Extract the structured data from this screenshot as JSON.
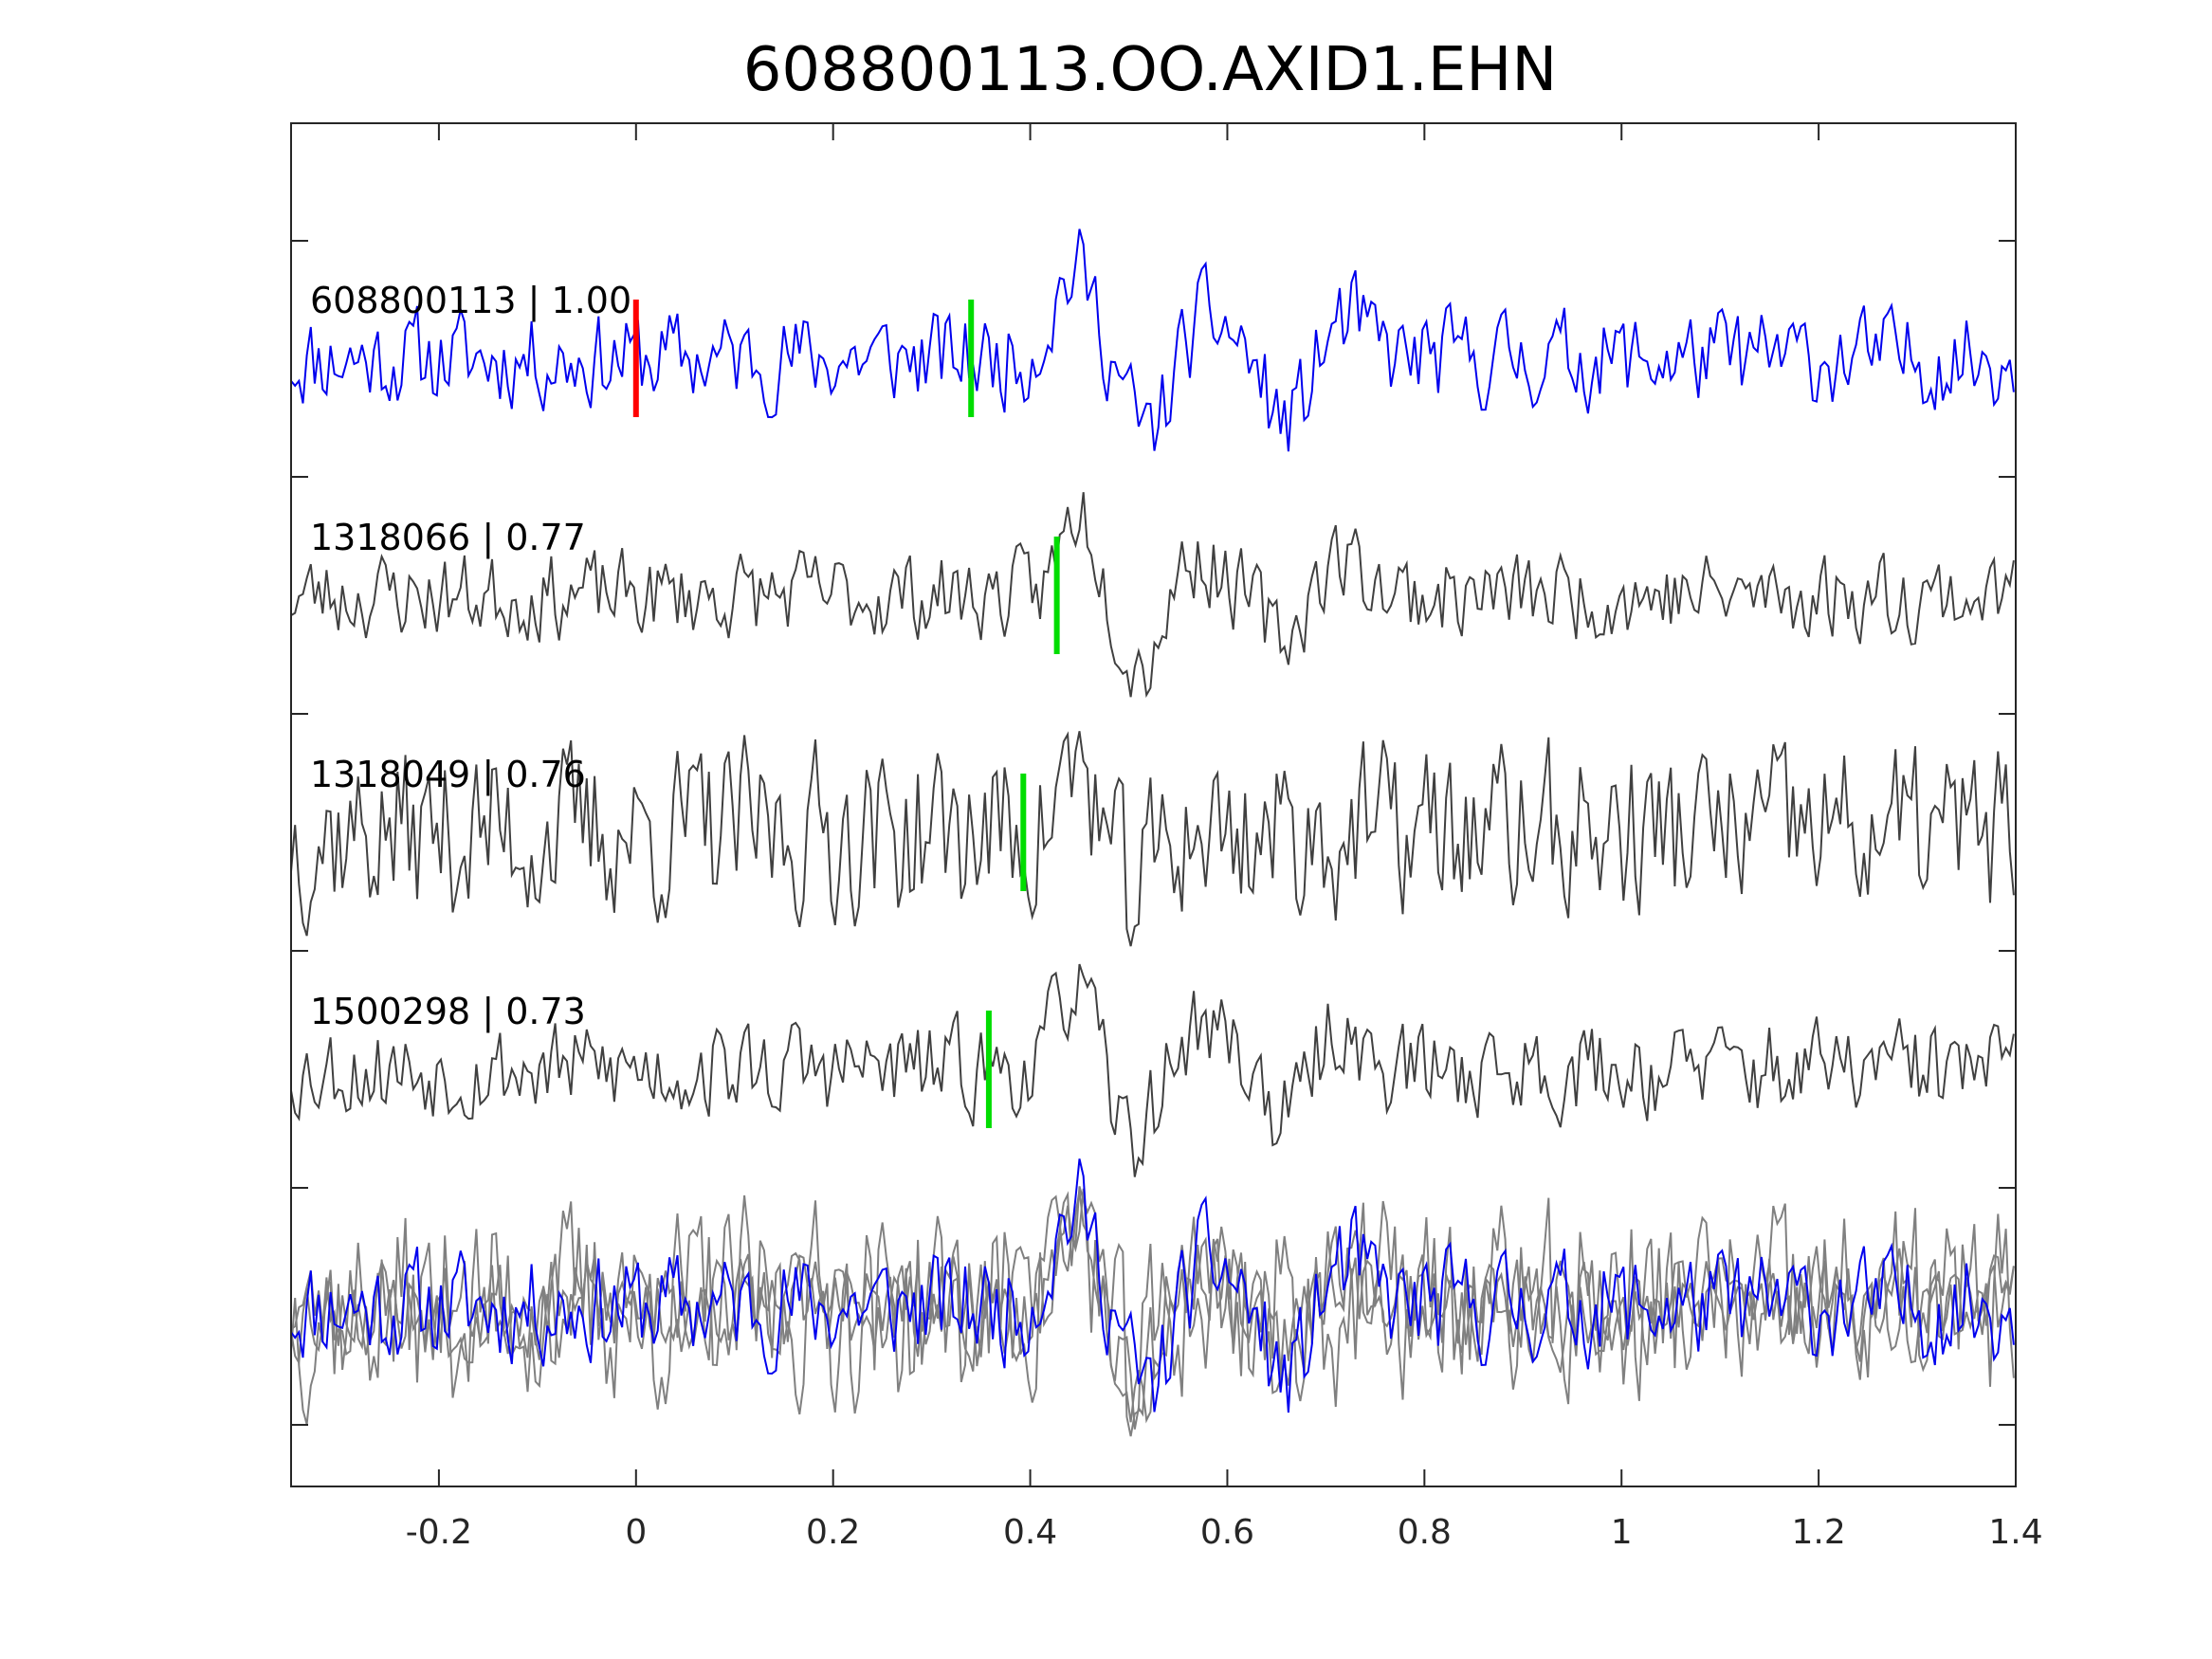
{
  "chart_data": {
    "type": "line",
    "title": "608800113.OO.AXID1.EHN",
    "xlabel": "",
    "ylabel": "",
    "xlim": [
      -0.35,
      1.4
    ],
    "xticks": [
      -0.2,
      0,
      0.2,
      0.4,
      0.6,
      0.8,
      1,
      1.2,
      1.4
    ],
    "xtick_labels": [
      "-0.2",
      "0",
      "0.2",
      "0.4",
      "0.6",
      "0.8",
      "1",
      "1.2",
      "1.4"
    ],
    "grid": false,
    "y_axis_labels": "none",
    "colors": {
      "primary": "#0000ee",
      "template": "#404040",
      "overlay": "#808080",
      "p_pick": "#ff0000",
      "s_pick": "#00dd00",
      "axes": "#262626"
    },
    "traces": [
      {
        "name": "608800113 | 1.00",
        "role": "primary",
        "picks": [
          {
            "phase": "P",
            "time": 0.0
          },
          {
            "phase": "S",
            "time": 0.34
          }
        ],
        "waveform": {
          "seed": 11,
          "noise": 0.5,
          "events": [
            {
              "t": 0.445,
              "amp": 1.0,
              "dur": 0.03
            },
            {
              "t": 0.52,
              "amp": -0.9,
              "dur": 0.03
            },
            {
              "t": 0.58,
              "amp": 0.45,
              "dur": 0.04
            },
            {
              "t": 0.66,
              "amp": -0.75,
              "dur": 0.03
            },
            {
              "t": 0.72,
              "amp": 0.45,
              "dur": 0.03
            }
          ]
        }
      },
      {
        "name": "1318066 | 0.77",
        "role": "template",
        "picks": [
          {
            "phase": "S",
            "time": 0.427
          }
        ],
        "waveform": {
          "seed": 23,
          "noise": 0.45,
          "events": [
            {
              "t": 0.45,
              "amp": 1.0,
              "dur": 0.025
            },
            {
              "t": 0.515,
              "amp": -0.9,
              "dur": 0.03
            },
            {
              "t": 0.56,
              "amp": 0.5,
              "dur": 0.04
            },
            {
              "t": 0.66,
              "amp": -0.55,
              "dur": 0.03
            },
            {
              "t": 0.71,
              "amp": 0.45,
              "dur": 0.04
            }
          ]
        }
      },
      {
        "name": "1318049 | 0.76",
        "role": "template",
        "picks": [
          {
            "phase": "S",
            "time": 0.393
          }
        ],
        "waveform": {
          "seed": 37,
          "noise": 0.9,
          "events": [
            {
              "t": 0.45,
              "amp": 0.8,
              "dur": 0.025
            },
            {
              "t": 0.5,
              "amp": -0.7,
              "dur": 0.03
            }
          ]
        }
      },
      {
        "name": "1500298 | 0.73",
        "role": "template",
        "picks": [
          {
            "phase": "S",
            "time": 0.358
          }
        ],
        "waveform": {
          "seed": 53,
          "noise": 0.5,
          "events": [
            {
              "t": 0.445,
              "amp": 1.0,
              "dur": 0.025
            },
            {
              "t": 0.505,
              "amp": -0.8,
              "dur": 0.03
            },
            {
              "t": 0.58,
              "amp": 0.5,
              "dur": 0.04
            },
            {
              "t": 0.66,
              "amp": -0.6,
              "dur": 0.03
            },
            {
              "t": 0.71,
              "amp": 0.5,
              "dur": 0.03
            }
          ]
        }
      }
    ],
    "overlay": {
      "name": "stack",
      "includes": [
        "608800113 | 1.00",
        "1318066 | 0.77",
        "1318049 | 0.76",
        "1500298 | 0.73"
      ]
    }
  }
}
